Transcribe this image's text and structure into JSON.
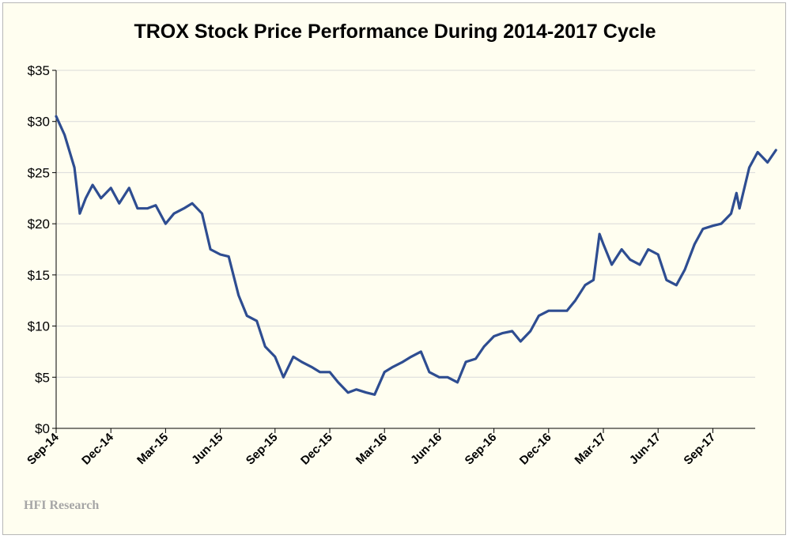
{
  "chart_data": {
    "type": "line",
    "title": "TROX Stock Price Performance During 2014-2017 Cycle",
    "xlabel": "",
    "ylabel": "",
    "x_tick_labels": [
      "Sep-14",
      "Dec-14",
      "Mar-15",
      "Jun-15",
      "Sep-15",
      "Dec-15",
      "Mar-16",
      "Jun-16",
      "Sep-16",
      "Dec-16",
      "Mar-17",
      "Jun-17",
      "Sep-17"
    ],
    "y_tick_labels": [
      "$0",
      "$5",
      "$10",
      "$15",
      "$20",
      "$25",
      "$30",
      "$35"
    ],
    "ylim": [
      0,
      35
    ],
    "grid": "horizontal",
    "line_color": "#2e4d91",
    "x": [
      "2014-09-01",
      "2014-09-15",
      "2014-10-01",
      "2014-10-10",
      "2014-10-20",
      "2014-11-01",
      "2014-11-15",
      "2014-12-01",
      "2014-12-15",
      "2015-01-01",
      "2015-01-15",
      "2015-02-01",
      "2015-02-15",
      "2015-03-01",
      "2015-03-15",
      "2015-04-01",
      "2015-04-15",
      "2015-05-01",
      "2015-05-15",
      "2015-06-01",
      "2015-06-15",
      "2015-07-01",
      "2015-07-15",
      "2015-08-01",
      "2015-08-15",
      "2015-09-01",
      "2015-09-15",
      "2015-10-01",
      "2015-10-15",
      "2015-11-01",
      "2015-11-15",
      "2015-12-01",
      "2015-12-15",
      "2016-01-01",
      "2016-01-15",
      "2016-02-01",
      "2016-02-15",
      "2016-03-01",
      "2016-03-15",
      "2016-04-01",
      "2016-04-15",
      "2016-05-01",
      "2016-05-15",
      "2016-06-01",
      "2016-06-15",
      "2016-07-01",
      "2016-07-15",
      "2016-08-01",
      "2016-08-15",
      "2016-09-01",
      "2016-09-15",
      "2016-10-01",
      "2016-10-15",
      "2016-11-01",
      "2016-11-15",
      "2016-12-01",
      "2016-12-15",
      "2017-01-01",
      "2017-01-15",
      "2017-02-01",
      "2017-02-15",
      "2017-02-25",
      "2017-03-01",
      "2017-03-15",
      "2017-04-01",
      "2017-04-15",
      "2017-05-01",
      "2017-05-15",
      "2017-06-01",
      "2017-06-15",
      "2017-07-01",
      "2017-07-15",
      "2017-08-01",
      "2017-08-15",
      "2017-09-01",
      "2017-09-15",
      "2017-10-01",
      "2017-10-10",
      "2017-10-15",
      "2017-11-01",
      "2017-11-15",
      "2017-12-01",
      "2017-12-15"
    ],
    "values": [
      30.5,
      28.7,
      25.5,
      21.0,
      22.5,
      23.8,
      22.5,
      23.5,
      22.0,
      23.5,
      21.5,
      21.5,
      21.8,
      20.0,
      21.0,
      21.5,
      22.0,
      21.0,
      17.5,
      17.0,
      16.8,
      13.0,
      11.0,
      10.5,
      8.0,
      7.0,
      5.0,
      7.0,
      6.5,
      6.0,
      5.5,
      5.5,
      4.5,
      3.5,
      3.8,
      3.5,
      3.3,
      5.5,
      6.0,
      6.5,
      7.0,
      7.5,
      5.5,
      5.0,
      5.0,
      4.5,
      6.5,
      6.8,
      8.0,
      9.0,
      9.3,
      9.5,
      8.5,
      9.5,
      11.0,
      11.5,
      11.5,
      11.5,
      12.5,
      14.0,
      14.5,
      19.0,
      18.0,
      16.0,
      17.5,
      16.5,
      16.0,
      17.5,
      17.0,
      14.5,
      14.0,
      15.5,
      18.0,
      19.5,
      19.8,
      20.0,
      21.0,
      23.0,
      21.5,
      25.5,
      27.0,
      26.0,
      27.2
    ]
  },
  "watermark": "HFI Research"
}
